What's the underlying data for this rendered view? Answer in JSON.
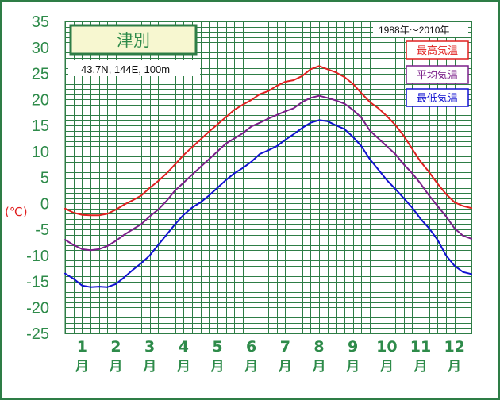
{
  "station": {
    "name": "津別",
    "location": "43.7N,  144E,  100m",
    "period": "1988年〜2010年"
  },
  "colors": {
    "frame": "#2e7d46",
    "tick_text": "#2e8b4a",
    "unit_text": "#e02020",
    "max": "#e02020",
    "mean": "#7b1f8a",
    "min": "#1010d0"
  },
  "chart_data": {
    "type": "line",
    "title": "津別",
    "ylabel": "(℃)",
    "xlabel": "",
    "ylim": [
      -25,
      35
    ],
    "yticks": [
      35,
      30,
      25,
      20,
      15,
      10,
      5,
      0,
      -5,
      -10,
      -15,
      -20,
      -25
    ],
    "y_minor_step": 1,
    "grid": true,
    "legend_position": "top-right",
    "months": [
      {
        "num": "1",
        "unit": "月"
      },
      {
        "num": "2",
        "unit": "月"
      },
      {
        "num": "3",
        "unit": "月"
      },
      {
        "num": "4",
        "unit": "月"
      },
      {
        "num": "5",
        "unit": "月"
      },
      {
        "num": "6",
        "unit": "月"
      },
      {
        "num": "7",
        "unit": "月"
      },
      {
        "num": "8",
        "unit": "月"
      },
      {
        "num": "9",
        "unit": "月"
      },
      {
        "num": "10",
        "unit": "月"
      },
      {
        "num": "11",
        "unit": "月"
      },
      {
        "num": "12",
        "unit": "月"
      }
    ],
    "x_month_start": 0,
    "x_month_end": 12,
    "series": [
      {
        "name": "最高気温",
        "color": "#e02020",
        "points": [
          [
            0.0,
            -1.0
          ],
          [
            0.25,
            -1.8
          ],
          [
            0.5,
            -2.2
          ],
          [
            0.75,
            -2.3
          ],
          [
            1.0,
            -2.3
          ],
          [
            1.25,
            -2.0
          ],
          [
            1.5,
            -1.2
          ],
          [
            1.75,
            -0.2
          ],
          [
            2.0,
            0.6
          ],
          [
            2.25,
            1.5
          ],
          [
            2.5,
            3.0
          ],
          [
            2.75,
            4.3
          ],
          [
            3.0,
            5.8
          ],
          [
            3.25,
            7.5
          ],
          [
            3.5,
            9.3
          ],
          [
            3.75,
            10.8
          ],
          [
            4.0,
            12.3
          ],
          [
            4.25,
            13.8
          ],
          [
            4.5,
            15.2
          ],
          [
            4.75,
            16.6
          ],
          [
            5.0,
            18.0
          ],
          [
            5.25,
            19.0
          ],
          [
            5.5,
            19.9
          ],
          [
            5.75,
            21.0
          ],
          [
            6.0,
            21.6
          ],
          [
            6.25,
            22.6
          ],
          [
            6.5,
            23.4
          ],
          [
            6.75,
            23.7
          ],
          [
            7.0,
            24.5
          ],
          [
            7.25,
            25.8
          ],
          [
            7.5,
            26.4
          ],
          [
            7.75,
            25.8
          ],
          [
            8.0,
            25.2
          ],
          [
            8.25,
            24.3
          ],
          [
            8.5,
            23.0
          ],
          [
            8.75,
            21.2
          ],
          [
            9.0,
            19.5
          ],
          [
            9.25,
            18.3
          ],
          [
            9.5,
            16.8
          ],
          [
            9.75,
            15.1
          ],
          [
            10.0,
            13.0
          ],
          [
            10.25,
            10.5
          ],
          [
            10.5,
            8.0
          ],
          [
            10.75,
            6.0
          ],
          [
            11.0,
            3.8
          ],
          [
            11.25,
            1.8
          ],
          [
            11.5,
            0.2
          ],
          [
            11.75,
            -0.5
          ],
          [
            12.0,
            -0.9
          ]
        ]
      },
      {
        "name": "平均気温",
        "color": "#7b1f8a",
        "points": [
          [
            0.0,
            -7.0
          ],
          [
            0.25,
            -8.0
          ],
          [
            0.5,
            -8.8
          ],
          [
            0.75,
            -9.0
          ],
          [
            1.0,
            -8.8
          ],
          [
            1.25,
            -8.2
          ],
          [
            1.5,
            -7.2
          ],
          [
            1.75,
            -6.0
          ],
          [
            2.0,
            -5.0
          ],
          [
            2.25,
            -4.0
          ],
          [
            2.5,
            -2.5
          ],
          [
            2.75,
            -1.2
          ],
          [
            3.0,
            0.5
          ],
          [
            3.25,
            2.5
          ],
          [
            3.5,
            4.0
          ],
          [
            3.75,
            5.5
          ],
          [
            4.0,
            7.0
          ],
          [
            4.25,
            8.5
          ],
          [
            4.5,
            10.0
          ],
          [
            4.75,
            11.5
          ],
          [
            5.0,
            12.5
          ],
          [
            5.25,
            13.5
          ],
          [
            5.5,
            14.8
          ],
          [
            5.75,
            15.5
          ],
          [
            6.0,
            16.3
          ],
          [
            6.25,
            17.0
          ],
          [
            6.5,
            17.7
          ],
          [
            6.75,
            18.3
          ],
          [
            7.0,
            19.5
          ],
          [
            7.25,
            20.3
          ],
          [
            7.5,
            20.7
          ],
          [
            7.75,
            20.3
          ],
          [
            8.0,
            19.8
          ],
          [
            8.25,
            19.2
          ],
          [
            8.5,
            18.0
          ],
          [
            8.75,
            16.5
          ],
          [
            9.0,
            14.0
          ],
          [
            9.25,
            12.5
          ],
          [
            9.5,
            11.0
          ],
          [
            9.75,
            9.5
          ],
          [
            10.0,
            7.5
          ],
          [
            10.25,
            5.8
          ],
          [
            10.5,
            3.8
          ],
          [
            10.75,
            1.5
          ],
          [
            11.0,
            -0.5
          ],
          [
            11.25,
            -2.5
          ],
          [
            11.5,
            -4.8
          ],
          [
            11.75,
            -6.2
          ],
          [
            12.0,
            -6.8
          ]
        ]
      },
      {
        "name": "最低気温",
        "color": "#1010d0",
        "points": [
          [
            0.0,
            -13.5
          ],
          [
            0.25,
            -14.5
          ],
          [
            0.5,
            -15.8
          ],
          [
            0.75,
            -16.1
          ],
          [
            1.0,
            -16.0
          ],
          [
            1.25,
            -16.1
          ],
          [
            1.5,
            -15.5
          ],
          [
            1.75,
            -14.2
          ],
          [
            2.0,
            -12.8
          ],
          [
            2.25,
            -11.5
          ],
          [
            2.5,
            -10.0
          ],
          [
            2.75,
            -8.0
          ],
          [
            3.0,
            -6.0
          ],
          [
            3.25,
            -4.0
          ],
          [
            3.5,
            -2.2
          ],
          [
            3.75,
            -0.8
          ],
          [
            4.0,
            0.2
          ],
          [
            4.25,
            1.5
          ],
          [
            4.5,
            3.0
          ],
          [
            4.75,
            4.5
          ],
          [
            5.0,
            5.8
          ],
          [
            5.25,
            6.8
          ],
          [
            5.5,
            8.0
          ],
          [
            5.75,
            9.5
          ],
          [
            6.0,
            10.2
          ],
          [
            6.25,
            11.0
          ],
          [
            6.5,
            12.2
          ],
          [
            6.75,
            13.3
          ],
          [
            7.0,
            14.5
          ],
          [
            7.25,
            15.5
          ],
          [
            7.5,
            16.0
          ],
          [
            7.75,
            15.8
          ],
          [
            8.0,
            15.0
          ],
          [
            8.25,
            14.3
          ],
          [
            8.5,
            12.8
          ],
          [
            8.75,
            11.0
          ],
          [
            9.0,
            8.5
          ],
          [
            9.25,
            6.5
          ],
          [
            9.5,
            4.5
          ],
          [
            9.75,
            2.8
          ],
          [
            10.0,
            1.0
          ],
          [
            10.25,
            -0.8
          ],
          [
            10.5,
            -3.0
          ],
          [
            10.75,
            -4.8
          ],
          [
            11.0,
            -7.0
          ],
          [
            11.25,
            -10.0
          ],
          [
            11.5,
            -12.0
          ],
          [
            11.75,
            -13.2
          ],
          [
            12.0,
            -13.6
          ]
        ]
      }
    ]
  }
}
